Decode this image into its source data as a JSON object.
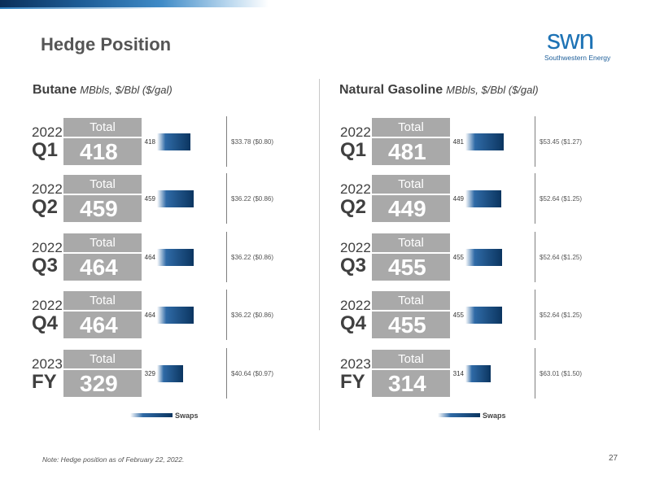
{
  "title": "Hedge Position",
  "logo": {
    "wordmark": "swn",
    "tagline": "Southwestern Energy"
  },
  "legend_label": "Swaps",
  "total_label": "Total",
  "chart_data": [
    {
      "type": "bar",
      "title": "Butane",
      "units": "MBbls, $/Bbl ($/gal)",
      "series": [
        {
          "name": "Swaps",
          "values": [
            418,
            459,
            464,
            464,
            329
          ]
        }
      ],
      "categories": [
        {
          "year": "2022",
          "period": "Q1",
          "total": "418",
          "swap": "418",
          "price": "$33.78 ($0.80)"
        },
        {
          "year": "2022",
          "period": "Q2",
          "total": "459",
          "swap": "459",
          "price": "$36.22 ($0.86)"
        },
        {
          "year": "2022",
          "period": "Q3",
          "total": "464",
          "swap": "464",
          "price": "$36.22 ($0.86)"
        },
        {
          "year": "2022",
          "period": "Q4",
          "total": "464",
          "swap": "464",
          "price": "$36.22 ($0.86)"
        },
        {
          "year": "2023",
          "period": "FY",
          "total": "329",
          "swap": "329",
          "price": "$40.64 ($0.97)"
        }
      ]
    },
    {
      "type": "bar",
      "title": "Natural Gasoline",
      "units": "MBbls, $/Bbl ($/gal)",
      "series": [
        {
          "name": "Swaps",
          "values": [
            481,
            449,
            455,
            455,
            314
          ]
        }
      ],
      "categories": [
        {
          "year": "2022",
          "period": "Q1",
          "total": "481",
          "swap": "481",
          "price": "$53.45 ($1.27)"
        },
        {
          "year": "2022",
          "period": "Q2",
          "total": "449",
          "swap": "449",
          "price": "$52.64 ($1.25)"
        },
        {
          "year": "2022",
          "period": "Q3",
          "total": "455",
          "swap": "455",
          "price": "$52.64 ($1.25)"
        },
        {
          "year": "2022",
          "period": "Q4",
          "total": "455",
          "swap": "455",
          "price": "$52.64 ($1.25)"
        },
        {
          "year": "2023",
          "period": "FY",
          "total": "314",
          "swap": "314",
          "price": "$63.01 ($1.50)"
        }
      ]
    }
  ],
  "footnote": "Note: Hedge position as of February 22, 2022.",
  "page_number": "27"
}
